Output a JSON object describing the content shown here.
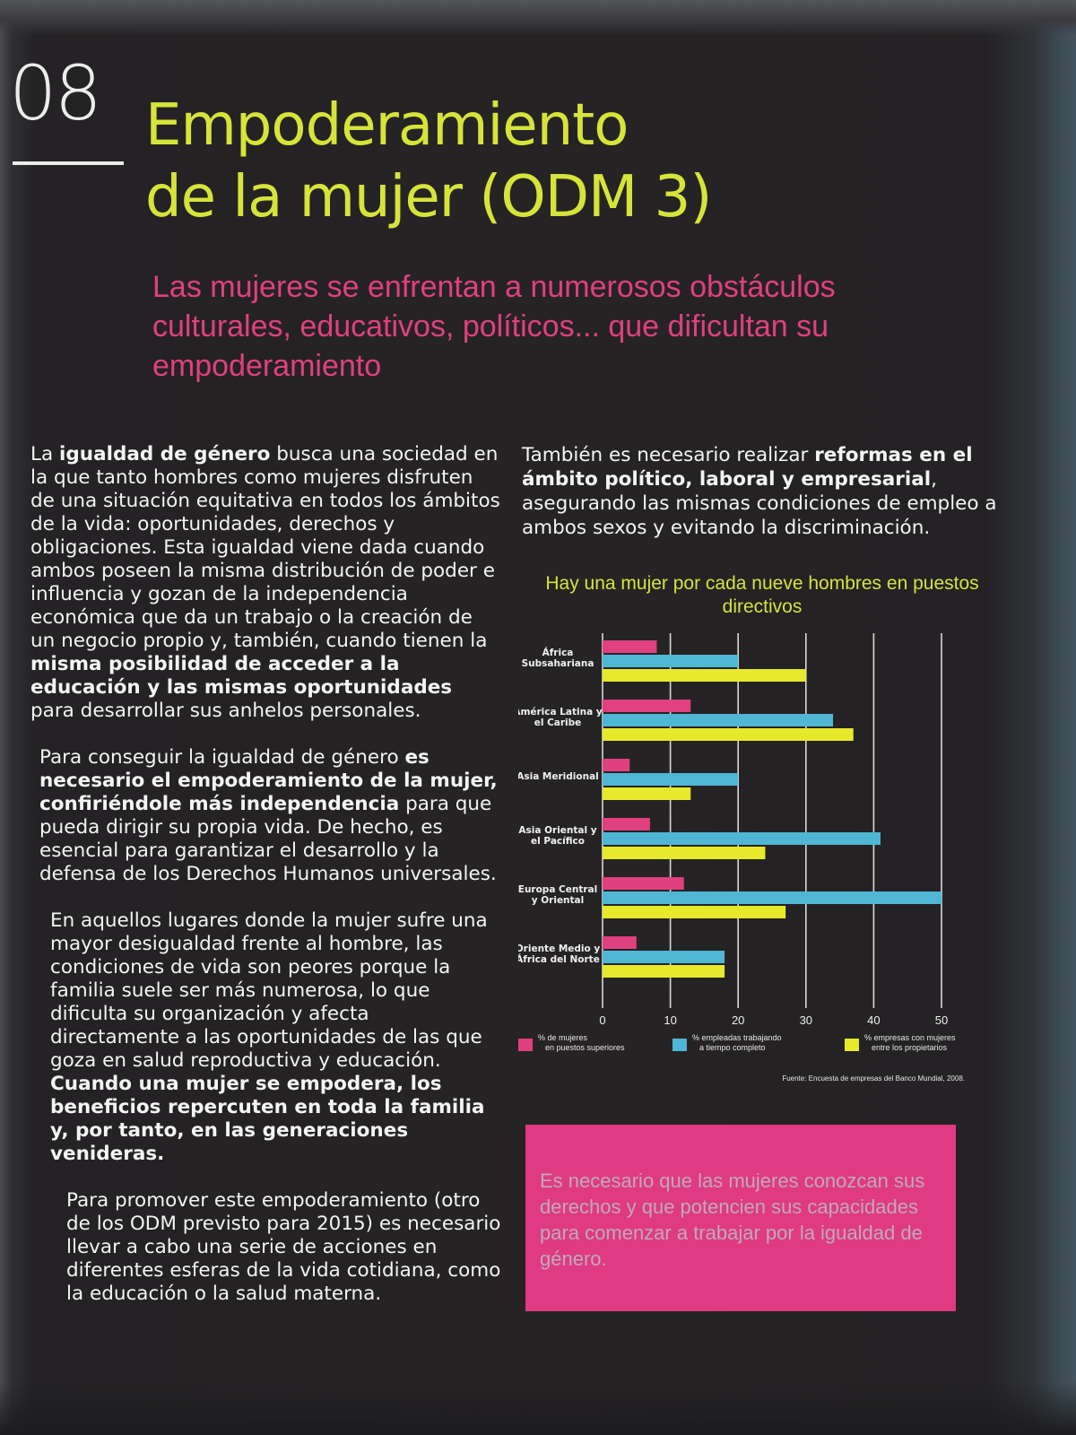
{
  "header": {
    "number": "08",
    "title_line1": "Empoderamiento",
    "title_line2": "de la mujer (ODM 3)",
    "subtitle": "Las mujeres se enfrentan a numerosos obstáculos culturales, educativos, políticos... que dificultan su empoderamiento"
  },
  "left_column": {
    "p1": [
      {
        "t": "La ",
        "b": false
      },
      {
        "t": "igualdad de género",
        "b": true
      },
      {
        "t": " busca una sociedad en la que tanto hombres como mujeres disfruten de una situación equitativa en todos los ámbitos de la vida: oportunidades, derechos y obligaciones. Esta igualdad viene dada cuando ambos poseen la misma distribución de poder e influencia y gozan de la independencia económica que da un trabajo o la creación de un negocio propio y, también, cuando tienen la ",
        "b": false
      },
      {
        "t": "misma posibilidad de acceder a la educación y las mismas oportunidades",
        "b": true
      },
      {
        "t": " para desarrollar sus anhelos personales.",
        "b": false
      }
    ],
    "p2": [
      {
        "t": "Para conseguir la igualdad de género ",
        "b": false
      },
      {
        "t": "es necesario el empoderamiento de la mujer, confiriéndole más independencia",
        "b": true
      },
      {
        "t": " para que pueda dirigir su propia vida. De hecho, es esencial para garantizar el desarrollo y la defensa de los Derechos Humanos universales.",
        "b": false
      }
    ],
    "p3": [
      {
        "t": "En aquellos lugares donde la mujer sufre una mayor desigualdad frente al hombre, las condiciones de vida son peores porque la familia suele ser más numerosa, lo que dificulta su organización y afecta directamente a las oportunidades de las que goza en salud reproductiva y educación. ",
        "b": false
      },
      {
        "t": "Cuando una mujer se empodera, los beneficios repercuten en toda la familia y, por tanto, en las generaciones venideras.",
        "b": true
      }
    ],
    "p4": [
      {
        "t": "Para promover este empoderamiento (otro de los ODM previsto para 2015) es necesario llevar a cabo una serie de acciones en diferentes esferas de la vida cotidiana, como la educación o la salud materna.",
        "b": false
      }
    ]
  },
  "right_column": {
    "p1": [
      {
        "t": "También es necesario realizar ",
        "b": false
      },
      {
        "t": "reformas en el ámbito político, laboral y empresarial",
        "b": true
      },
      {
        "t": ", asegurando las mismas condiciones de empleo a ambos sexos y evitando la discriminación.",
        "b": false
      }
    ]
  },
  "chart_data": {
    "type": "bar",
    "orientation": "horizontal",
    "title": "Hay una mujer por cada nueve hombres en puestos directivos",
    "categories": [
      "África Subsahariana",
      "América Latina y el Caribe",
      "Asia Meridional",
      "Asia Oriental y el Pacífico",
      "Europa Central y Oriental",
      "Oriente Medio y África del Norte"
    ],
    "series": [
      {
        "name": "% de mujeres en puestos superiores",
        "color": "#e0407f",
        "values": [
          8,
          13,
          4,
          7,
          12,
          5
        ]
      },
      {
        "name": "% empleadas trabajando a tiempo completo",
        "color": "#4fb6d4",
        "values": [
          20,
          34,
          20,
          41,
          50,
          18
        ]
      },
      {
        "name": "% empresas con mujeres entre los propietarios",
        "color": "#e6ea2a",
        "values": [
          30,
          37,
          13,
          24,
          27,
          18
        ]
      }
    ],
    "xlim": [
      0,
      50
    ],
    "xticks": [
      0,
      10,
      20,
      30,
      40,
      50
    ],
    "grid": true,
    "legend": "bottom",
    "source": "Fuente: Encuesta de empresas del Banco Mundial, 2008."
  },
  "callout": {
    "text": "Es necesario que las mujeres conozcan sus derechos y que potencien sus capacidades para comenzar a trabajar por la igualdad de género."
  }
}
